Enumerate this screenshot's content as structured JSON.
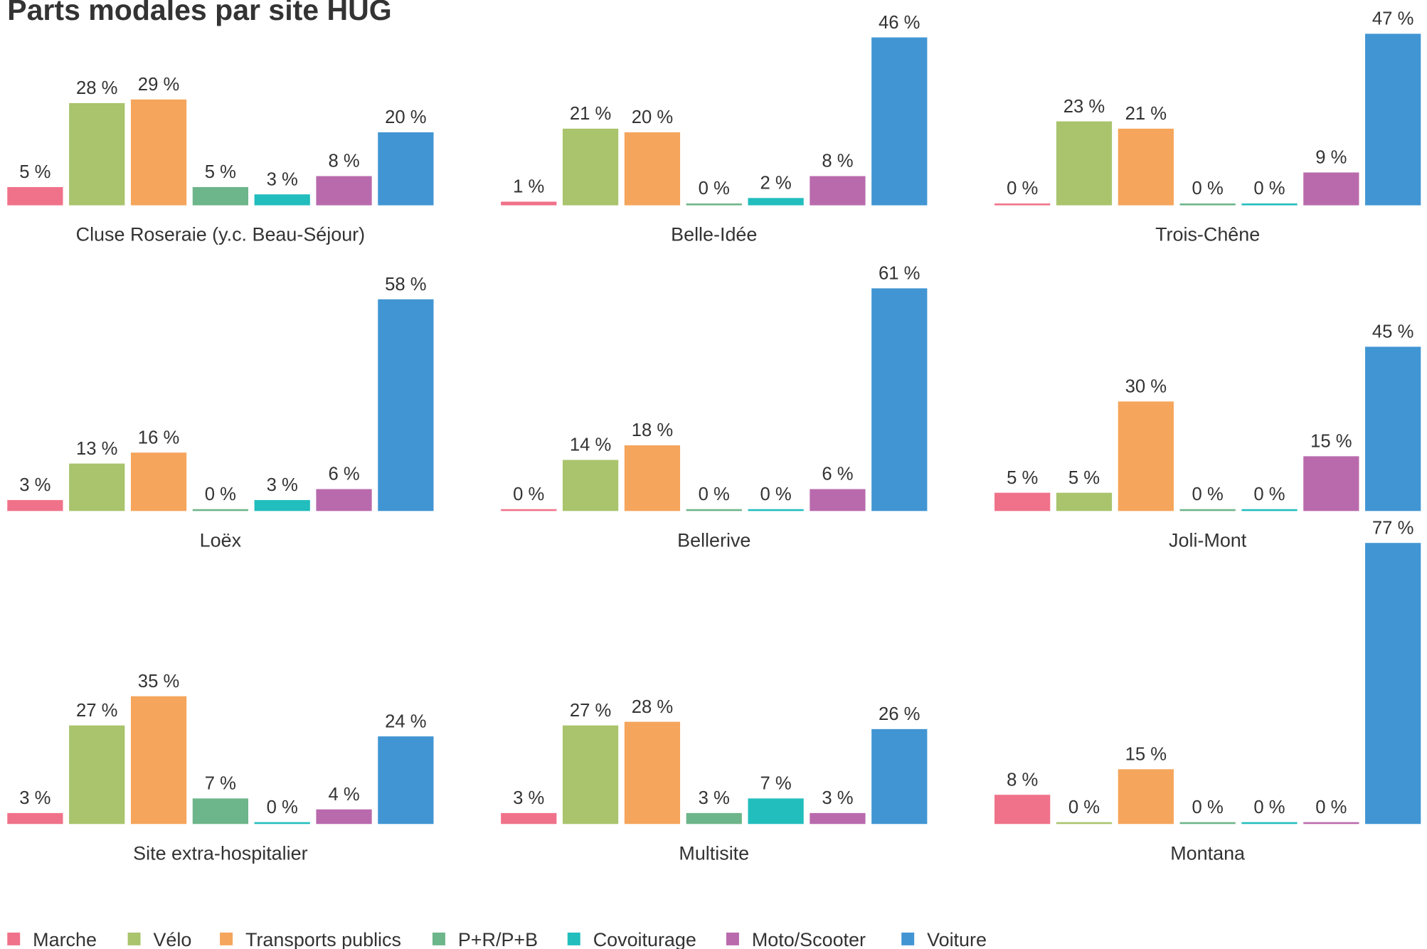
{
  "chart_data": {
    "type": "bar",
    "title": "Parts modales par site HUG",
    "categories": [
      "Marche",
      "Vélo",
      "Transports publics",
      "P+R/P+B",
      "Covoiturage",
      "Moto/Scooter",
      "Voiture"
    ],
    "colors": [
      "#f0728a",
      "#a9c46c",
      "#f5a55c",
      "#6db58a",
      "#22bdbd",
      "#b96aad",
      "#4195d3"
    ],
    "ylim": [
      0,
      80
    ],
    "panels": [
      {
        "title": "Cluse Roseraie (y.c. Beau-Séjour)",
        "values": [
          5,
          28,
          29,
          5,
          3,
          8,
          20
        ],
        "value_labels": [
          "5 %",
          "28 %",
          "29 %",
          "5 %",
          "3 %",
          "8 %",
          "20 %"
        ]
      },
      {
        "title": "Belle-Idée",
        "values": [
          1,
          21,
          20,
          0,
          2,
          8,
          46
        ],
        "value_labels": [
          "1 %",
          "21 %",
          "20 %",
          "0 %",
          "2 %",
          "8 %",
          "46 %"
        ]
      },
      {
        "title": "Trois-Chêne",
        "values": [
          0,
          23,
          21,
          0,
          0,
          9,
          47
        ],
        "value_labels": [
          "0 %",
          "23 %",
          "21 %",
          "0 %",
          "0 %",
          "9 %",
          "47 %"
        ]
      },
      {
        "title": "Loëx",
        "values": [
          3,
          13,
          16,
          0,
          3,
          6,
          58
        ],
        "value_labels": [
          "3 %",
          "13 %",
          "16 %",
          "0 %",
          "3 %",
          "6 %",
          "58 %"
        ]
      },
      {
        "title": "Bellerive",
        "values": [
          0,
          14,
          18,
          0,
          0,
          6,
          61
        ],
        "value_labels": [
          "0 %",
          "14 %",
          "18 %",
          "0 %",
          "0 %",
          "6 %",
          "61 %"
        ]
      },
      {
        "title": "Joli-Mont",
        "values": [
          5,
          5,
          30,
          0,
          0,
          15,
          45
        ],
        "value_labels": [
          "5 %",
          "5 %",
          "30 %",
          "0 %",
          "0 %",
          "15 %",
          "45 %"
        ]
      },
      {
        "title": "Site extra-hospitalier",
        "values": [
          3,
          27,
          35,
          7,
          0,
          4,
          24
        ],
        "value_labels": [
          "3 %",
          "27 %",
          "35 %",
          "7 %",
          "0 %",
          "4 %",
          "24 %"
        ]
      },
      {
        "title": "Multisite",
        "values": [
          3,
          27,
          28,
          3,
          7,
          3,
          26
        ],
        "value_labels": [
          "3 %",
          "27 %",
          "28 %",
          "3 %",
          "7 %",
          "3 %",
          "26 %"
        ]
      },
      {
        "title": "Montana",
        "values": [
          8,
          0,
          15,
          0,
          0,
          0,
          77
        ],
        "value_labels": [
          "8 %",
          "0 %",
          "15 %",
          "0 %",
          "0 %",
          "0 %",
          "77 %"
        ]
      }
    ]
  }
}
